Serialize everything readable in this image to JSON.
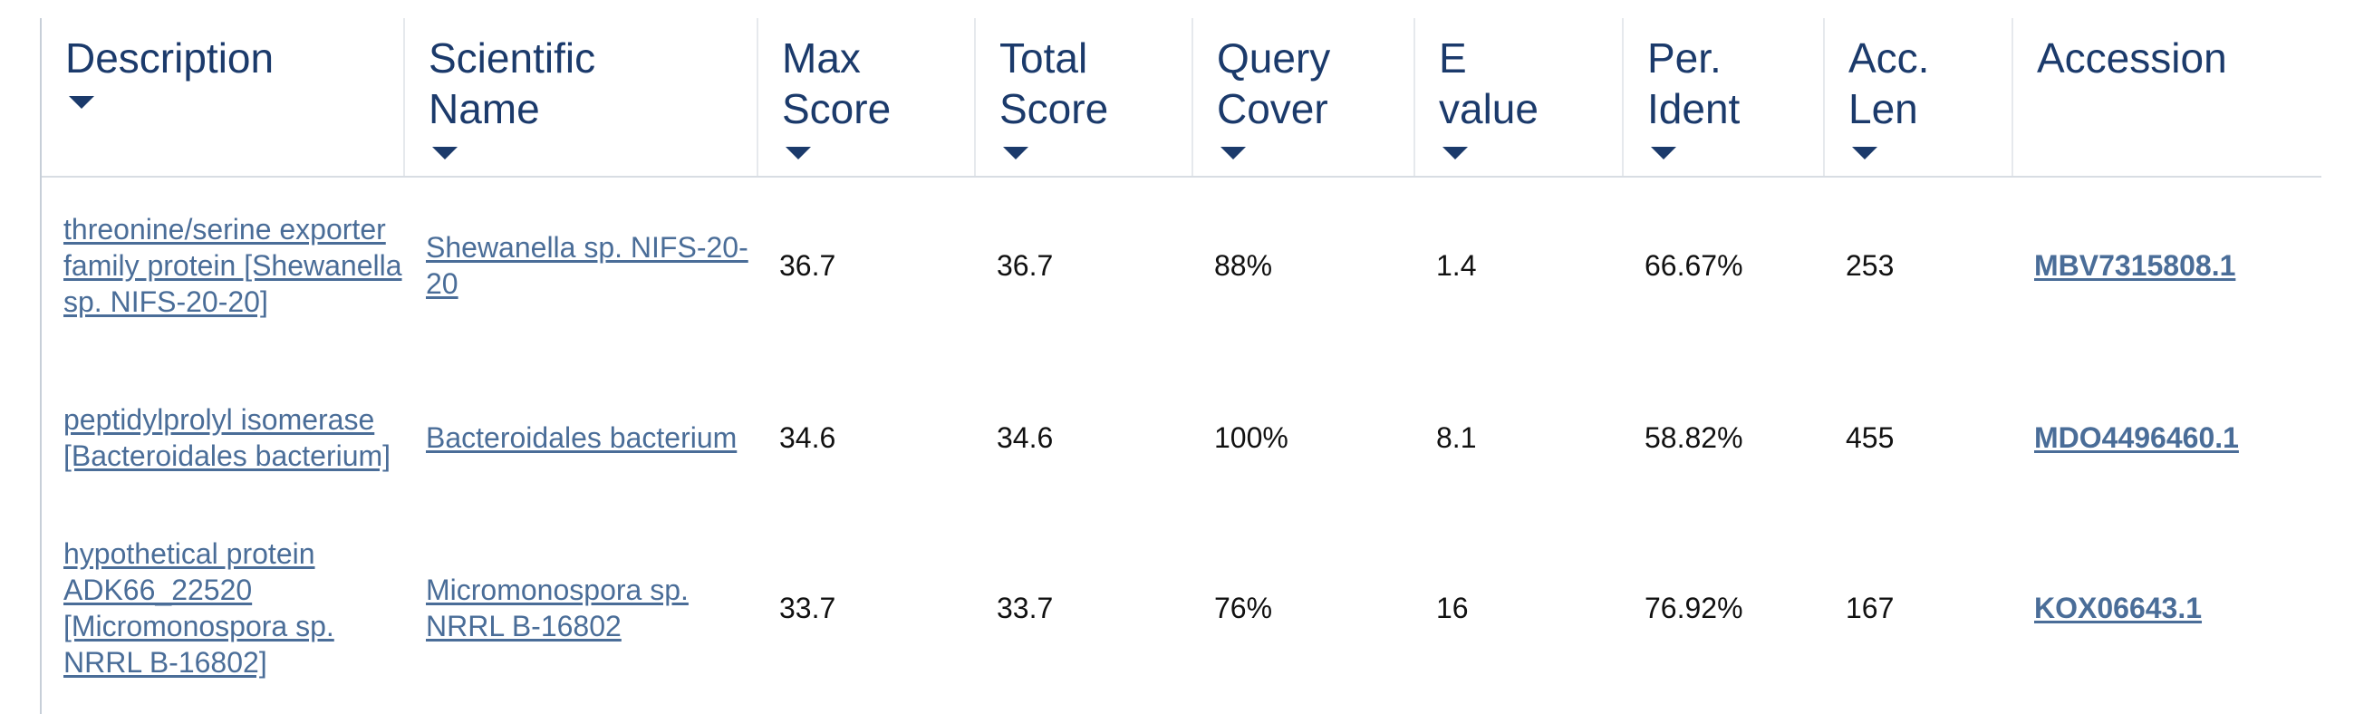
{
  "table": {
    "headers": [
      {
        "label": "Description",
        "name": "description"
      },
      {
        "label": "Scientific Name",
        "name": "scientific-name"
      },
      {
        "label": "Max Score",
        "name": "max-score"
      },
      {
        "label": "Total Score",
        "name": "total-score"
      },
      {
        "label": "Query Cover",
        "name": "query-cover"
      },
      {
        "label": "E value",
        "name": "e-value"
      },
      {
        "label": "Per. Ident",
        "name": "per-ident"
      },
      {
        "label": "Acc. Len",
        "name": "acc-len"
      },
      {
        "label": "Accession",
        "name": "accession"
      }
    ],
    "sort_icon": "caret-down-icon",
    "rows": [
      {
        "description": "threonine/serine exporter family protein [Shewanella sp. NIFS-20-20]",
        "scientific_name": "Shewanella sp. NIFS-20-20",
        "max_score": "36.7",
        "total_score": "36.7",
        "query_cover": "88%",
        "e_value": "1.4",
        "per_ident": "66.67%",
        "acc_len": "253",
        "accession": "MBV7315808.1"
      },
      {
        "description": "peptidylprolyl isomerase [Bacteroidales bacterium]",
        "scientific_name": "Bacteroidales bacterium",
        "max_score": "34.6",
        "total_score": "34.6",
        "query_cover": "100%",
        "e_value": "8.1",
        "per_ident": "58.82%",
        "acc_len": "455",
        "accession": "MDO4496460.1"
      },
      {
        "description": "hypothetical protein ADK66_22520 [Micromonospora sp. NRRL B-16802]",
        "scientific_name": "Micromonospora sp. NRRL B-16802",
        "max_score": "33.7",
        "total_score": "33.7",
        "query_cover": "76%",
        "e_value": "16",
        "per_ident": "76.92%",
        "acc_len": "167",
        "accession": "KOX06643.1"
      }
    ]
  },
  "colors": {
    "header_text": "#1b3a6b",
    "link": "#4a6d98",
    "body_text": "#111111",
    "divider": "#d8dde3"
  }
}
